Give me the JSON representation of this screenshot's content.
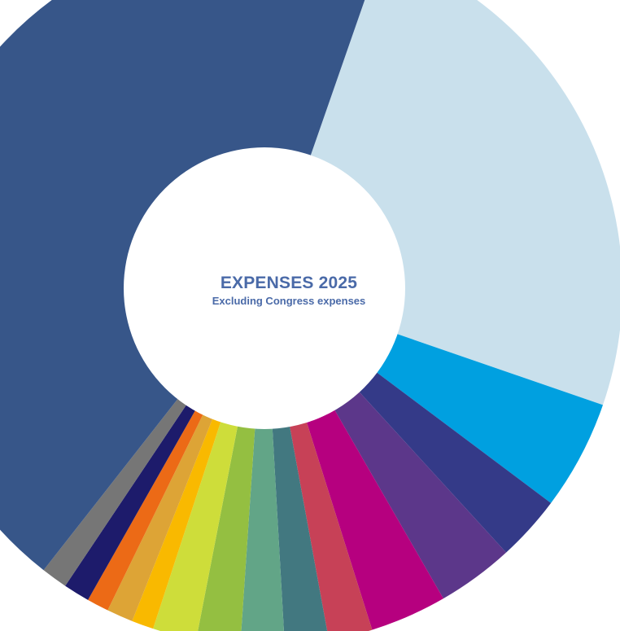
{
  "chart_data": {
    "type": "pie",
    "title": "EXPENSES 2025",
    "subtitle": "Excluding Congress expenses",
    "slices": [
      {
        "value": 25.2,
        "color": "#c9e0ec"
      },
      {
        "value": 5.0,
        "color": "#00a0e0"
      },
      {
        "value": 3.0,
        "color": "#343a88"
      },
      {
        "value": 3.5,
        "color": "#5c378a"
      },
      {
        "value": 3.5,
        "color": "#b6007f"
      },
      {
        "value": 2.0,
        "color": "#c74157"
      },
      {
        "value": 2.0,
        "color": "#427880"
      },
      {
        "value": 2.0,
        "color": "#62a587"
      },
      {
        "value": 2.0,
        "color": "#94bf41"
      },
      {
        "value": 2.0,
        "color": "#cedd3a"
      },
      {
        "value": 1.0,
        "color": "#f9b900"
      },
      {
        "value": 1.2,
        "color": "#dda436"
      },
      {
        "value": 1.0,
        "color": "#ec6a16"
      },
      {
        "value": 1.2,
        "color": "#1d1b6b"
      },
      {
        "value": 1.2,
        "color": "#767676"
      },
      {
        "value": 45.2,
        "color": "#375689"
      }
    ]
  }
}
